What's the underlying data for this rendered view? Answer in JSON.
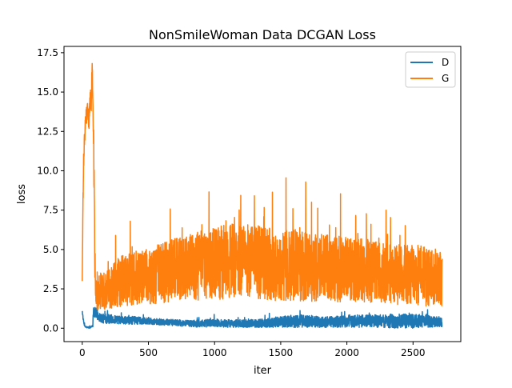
{
  "chart_data": {
    "type": "line",
    "title": "NonSmileWoman Data DCGAN Loss",
    "xlabel": "iter",
    "ylabel": "loss",
    "xlim": [
      -138,
      2861
    ],
    "ylim": [
      -0.85,
      17.9
    ],
    "xticks": [
      0,
      500,
      1000,
      1500,
      2000,
      2500
    ],
    "xtick_labels": [
      "0",
      "500",
      "1000",
      "1500",
      "2000",
      "2500"
    ],
    "yticks": [
      0.0,
      2.5,
      5.0,
      7.5,
      10.0,
      12.5,
      15.0,
      17.5
    ],
    "ytick_labels": [
      "0.0",
      "2.5",
      "5.0",
      "7.5",
      "10.0",
      "12.5",
      "15.0",
      "17.5"
    ],
    "grid": false,
    "legend": "top-right",
    "series": [
      {
        "name": "D",
        "color": "#1f77b4",
        "x": [
          0,
          8,
          20,
          40,
          60,
          70,
          80,
          85,
          90,
          100,
          110,
          130,
          160,
          200,
          250,
          300,
          400,
          500,
          600,
          700,
          800,
          900,
          1000,
          1100,
          1200,
          1300,
          1400,
          1500,
          1600,
          1700,
          1800,
          1900,
          2000,
          2100,
          2200,
          2300,
          2400,
          2500,
          2600,
          2720
        ],
        "values": [
          1.1,
          0.5,
          0.1,
          0.05,
          0.05,
          0.1,
          0.2,
          1.4,
          0.9,
          1.0,
          0.9,
          0.7,
          0.6,
          0.6,
          0.55,
          0.5,
          0.5,
          0.45,
          0.4,
          0.35,
          0.3,
          0.3,
          0.35,
          0.3,
          0.3,
          0.3,
          0.35,
          0.4,
          0.45,
          0.45,
          0.4,
          0.4,
          0.45,
          0.45,
          0.45,
          0.45,
          0.45,
          0.45,
          0.45,
          0.4
        ],
        "spread": [
          0.1,
          0.1,
          0.05,
          0.05,
          0.05,
          0.05,
          0.1,
          0.3,
          0.35,
          0.35,
          0.35,
          0.3,
          0.3,
          0.3,
          0.25,
          0.25,
          0.25,
          0.2,
          0.2,
          0.2,
          0.2,
          0.25,
          0.25,
          0.25,
          0.25,
          0.25,
          0.3,
          0.35,
          0.4,
          0.4,
          0.35,
          0.35,
          0.4,
          0.4,
          0.4,
          0.45,
          0.45,
          0.45,
          0.4,
          0.3
        ]
      },
      {
        "name": "G",
        "color": "#ff7f0e",
        "x": [
          0,
          5,
          10,
          20,
          30,
          40,
          50,
          60,
          70,
          75,
          80,
          90,
          95,
          100,
          110,
          120,
          150,
          200,
          250,
          300,
          400,
          500,
          600,
          700,
          800,
          900,
          1000,
          1100,
          1200,
          1300,
          1400,
          1500,
          1600,
          1700,
          1800,
          1900,
          2000,
          2100,
          2200,
          2300,
          2400,
          2500,
          2600,
          2720
        ],
        "values": [
          3.0,
          7.5,
          10.5,
          12.5,
          13.5,
          13.8,
          13.2,
          14.2,
          14.8,
          16.8,
          15.0,
          9.0,
          4.5,
          2.3,
          2.2,
          2.3,
          2.4,
          2.6,
          2.8,
          3.0,
          3.2,
          3.3,
          3.5,
          3.7,
          3.8,
          4.0,
          4.1,
          4.2,
          4.3,
          4.2,
          4.1,
          4.0,
          4.0,
          3.9,
          3.8,
          3.8,
          3.7,
          3.7,
          3.6,
          3.5,
          3.4,
          3.4,
          3.3,
          3.2
        ],
        "spread": [
          0.0,
          0.5,
          0.6,
          0.7,
          0.6,
          0.5,
          0.6,
          0.8,
          1.0,
          0.3,
          1.0,
          2.0,
          1.5,
          0.9,
          1.0,
          1.1,
          1.2,
          1.4,
          1.5,
          1.6,
          1.7,
          1.8,
          1.9,
          2.0,
          2.1,
          2.2,
          2.3,
          2.4,
          2.4,
          2.4,
          2.3,
          2.3,
          2.3,
          2.2,
          2.2,
          2.1,
          2.1,
          2.0,
          2.0,
          2.0,
          1.9,
          1.9,
          1.9,
          1.8
        ]
      }
    ]
  }
}
